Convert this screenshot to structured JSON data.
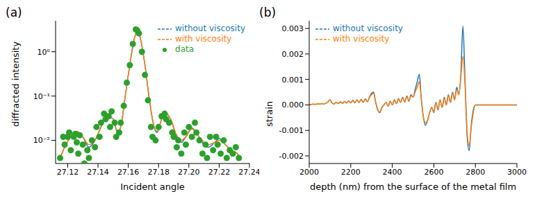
{
  "chart_data": [
    {
      "type": "line",
      "title": "(a)",
      "x_label": "Incident angle",
      "y_label": "diffracted intensity",
      "log": "y",
      "legend": "upper right",
      "xlim": [
        27.112,
        27.24
      ],
      "ylim": [
        0.003,
        5
      ],
      "xticks": [
        27.12,
        27.14,
        27.16,
        27.18,
        {
          "value": 27.2,
          "label": "27.20"
        },
        27.22,
        27.24
      ],
      "yticks": [
        {
          "value": 0.01,
          "label": "10⁻²"
        },
        {
          "value": 0.1,
          "label": "10⁻¹"
        },
        {
          "value": 1,
          "label": "10⁰"
        }
      ],
      "series": [
        {
          "name": "without viscosity",
          "type": "line",
          "color": "#1f77b4",
          "x": [
            27.115,
            27.118,
            27.122,
            27.126,
            27.13,
            27.134,
            27.138,
            27.142,
            27.146,
            27.15,
            27.153,
            27.155,
            27.158,
            27.161,
            27.164,
            27.166,
            27.168,
            27.171,
            27.174,
            27.177,
            27.179,
            27.182,
            27.185,
            27.188,
            27.192,
            27.195,
            27.198,
            27.202,
            27.206,
            27.21,
            27.213,
            27.217,
            27.22,
            27.224,
            27.228,
            27.232,
            27.234
          ],
          "values": [
            0.004,
            0.007,
            0.012,
            0.016,
            0.012,
            0.007,
            0.01,
            0.02,
            0.036,
            0.03,
            0.015,
            0.02,
            0.1,
            0.5,
            2.0,
            3.0,
            2.0,
            0.5,
            0.08,
            0.02,
            0.015,
            0.03,
            0.04,
            0.03,
            0.012,
            0.009,
            0.012,
            0.019,
            0.013,
            0.008,
            0.007,
            0.009,
            0.011,
            0.008,
            0.006,
            0.005,
            0.004
          ]
        },
        {
          "name": "with viscosity",
          "type": "line",
          "color": "#ff7f0e",
          "x": [
            27.115,
            27.118,
            27.122,
            27.126,
            27.13,
            27.134,
            27.138,
            27.142,
            27.146,
            27.15,
            27.153,
            27.155,
            27.158,
            27.161,
            27.164,
            27.166,
            27.168,
            27.171,
            27.174,
            27.177,
            27.179,
            27.182,
            27.185,
            27.188,
            27.192,
            27.195,
            27.198,
            27.202,
            27.206,
            27.21,
            27.213,
            27.217,
            27.22,
            27.224,
            27.228,
            27.232,
            27.234
          ],
          "values": [
            0.004,
            0.007,
            0.012,
            0.016,
            0.012,
            0.008,
            0.01,
            0.02,
            0.035,
            0.03,
            0.016,
            0.02,
            0.1,
            0.5,
            2.0,
            3.0,
            2.0,
            0.5,
            0.08,
            0.021,
            0.016,
            0.03,
            0.039,
            0.03,
            0.013,
            0.01,
            0.012,
            0.018,
            0.013,
            0.009,
            0.008,
            0.009,
            0.01,
            0.008,
            0.006,
            0.005,
            0.004
          ]
        },
        {
          "name": "data",
          "type": "scatter",
          "color": "#2ca02c",
          "marker": "circle",
          "x": [
            27.115,
            27.117,
            27.118,
            27.12,
            27.121,
            27.122,
            27.124,
            27.125,
            27.126,
            27.127,
            27.128,
            27.13,
            27.131,
            27.133,
            27.134,
            27.136,
            27.138,
            27.139,
            27.141,
            27.142,
            27.144,
            27.145,
            27.147,
            27.148,
            27.149,
            27.151,
            27.152,
            27.154,
            27.155,
            27.157,
            27.159,
            27.161,
            27.163,
            27.165,
            27.166,
            27.167,
            27.169,
            27.171,
            27.173,
            27.175,
            27.176,
            27.178,
            27.18,
            27.182,
            27.184,
            27.185,
            27.187,
            27.189,
            27.19,
            27.192,
            27.193,
            27.195,
            27.197,
            27.198,
            27.2,
            27.202,
            27.204,
            27.205,
            27.207,
            27.209,
            27.211,
            27.212,
            27.214,
            27.216,
            27.218,
            27.219,
            27.221,
            27.223,
            27.225,
            27.227,
            27.229,
            27.231,
            27.233
          ],
          "values": [
            0.004,
            0.012,
            0.008,
            0.012,
            0.015,
            0.006,
            0.012,
            0.014,
            0.009,
            0.005,
            0.013,
            0.008,
            0.003,
            0.006,
            0.004,
            0.01,
            0.007,
            0.02,
            0.012,
            0.025,
            0.04,
            0.03,
            0.035,
            0.02,
            0.045,
            0.025,
            0.012,
            0.015,
            0.025,
            0.06,
            0.2,
            0.5,
            1.5,
            3.2,
            3.0,
            2.6,
            1.0,
            0.3,
            0.08,
            0.02,
            0.012,
            0.01,
            0.02,
            0.035,
            0.04,
            0.03,
            0.025,
            0.015,
            0.012,
            0.007,
            0.01,
            0.005,
            0.015,
            0.008,
            0.02,
            0.012,
            0.025,
            0.015,
            0.01,
            0.005,
            0.008,
            0.004,
            0.012,
            0.006,
            0.012,
            0.008,
            0.005,
            0.01,
            0.004,
            0.006,
            0.005,
            0.007,
            0.004
          ]
        }
      ]
    },
    {
      "type": "line",
      "title": "(b)",
      "x_label": "depth (nm) from the surface of the metal film",
      "y_label": "strain",
      "legend": "upper left",
      "xlim": [
        2000,
        3000
      ],
      "ylim": [
        -0.0023,
        0.0033
      ],
      "xticks": [
        2000,
        2200,
        2400,
        2600,
        2800,
        3000
      ],
      "yticks": [
        -0.002,
        -0.001,
        {
          "value": 0,
          "label": "0.000"
        },
        0.001,
        0.002,
        0.003
      ],
      "series": [
        {
          "name": "without viscosity",
          "type": "line",
          "color": "#1f77b4",
          "x": [
            2000,
            2010,
            2020,
            2030,
            2040,
            2050,
            2060,
            2070,
            2080,
            2090,
            2100,
            2110,
            2120,
            2130,
            2140,
            2150,
            2160,
            2170,
            2180,
            2190,
            2200,
            2210,
            2220,
            2230,
            2240,
            2250,
            2260,
            2270,
            2280,
            2290,
            2300,
            2310,
            2320,
            2330,
            2340,
            2350,
            2360,
            2370,
            2380,
            2390,
            2400,
            2410,
            2420,
            2430,
            2440,
            2450,
            2460,
            2470,
            2480,
            2490,
            2500,
            2510,
            2520,
            2530,
            2540,
            2550,
            2560,
            2570,
            2580,
            2590,
            2600,
            2610,
            2620,
            2630,
            2640,
            2650,
            2660,
            2670,
            2680,
            2690,
            2700,
            2710,
            2720,
            2730,
            2740,
            2750,
            2760,
            2770,
            2780,
            2790,
            2800,
            2850,
            2900,
            2950,
            3000
          ],
          "values": [
            0,
            2e-05,
            3e-05,
            2e-05,
            4e-05,
            3e-05,
            5e-05,
            4e-05,
            6e-05,
            0.00012,
            0.0002,
            8e-05,
            4e-05,
            0.0001,
            5e-05,
            0.00012,
            6e-05,
            0.00014,
            7e-05,
            0.00016,
            8e-05,
            0.00018,
            8e-05,
            0.0002,
            9e-05,
            0.00022,
            0.0001,
            0.00024,
            0.00012,
            0.0003,
            0.00045,
            0.0005,
            0.0001,
            -0.0002,
            -0.0003,
            -0.0001,
            0,
            0.0001,
            -5e-05,
            0.00015,
            0,
            0.0002,
            5e-05,
            0.00025,
            0.0001,
            0.0003,
            0.00012,
            0.00035,
            0.00015,
            0.0004,
            0.0003,
            0.0006,
            0.0009,
            0.0012,
            0.0002,
            -0.0005,
            -0.0008,
            -0.0006,
            -0.0003,
            -0.0001,
            -0.0003,
            0.0001,
            -0.0002,
            0.0002,
            -0.0001,
            0.0003,
            0,
            0.0004,
            0.0001,
            0.0005,
            0.0002,
            0.0007,
            0.0004,
            0.0012,
            0.0031,
            0.001,
            -0.0012,
            -0.0018,
            -0.0008,
            -0.0002,
            0,
            0,
            0,
            0,
            0
          ]
        },
        {
          "name": "with viscosity",
          "type": "line",
          "color": "#ff7f0e",
          "x": [
            2000,
            2010,
            2020,
            2030,
            2040,
            2050,
            2060,
            2070,
            2080,
            2090,
            2100,
            2110,
            2120,
            2130,
            2140,
            2150,
            2160,
            2170,
            2180,
            2190,
            2200,
            2210,
            2220,
            2230,
            2240,
            2250,
            2260,
            2270,
            2280,
            2290,
            2300,
            2310,
            2320,
            2330,
            2340,
            2350,
            2360,
            2370,
            2380,
            2390,
            2400,
            2410,
            2420,
            2430,
            2440,
            2450,
            2460,
            2470,
            2480,
            2490,
            2500,
            2510,
            2520,
            2530,
            2540,
            2550,
            2560,
            2570,
            2580,
            2590,
            2600,
            2610,
            2620,
            2630,
            2640,
            2650,
            2660,
            2670,
            2680,
            2690,
            2700,
            2710,
            2720,
            2730,
            2740,
            2750,
            2760,
            2770,
            2780,
            2790,
            2800,
            2850,
            2900,
            2950,
            3000
          ],
          "values": [
            0,
            2e-05,
            3e-05,
            2e-05,
            4e-05,
            3e-05,
            5e-05,
            4e-05,
            6e-05,
            0.00012,
            0.0002,
            8e-05,
            4e-05,
            0.0001,
            5e-05,
            0.00011,
            6e-05,
            0.00013,
            7e-05,
            0.00015,
            8e-05,
            0.00017,
            8e-05,
            0.00019,
            9e-05,
            0.00021,
            0.0001,
            0.00023,
            0.00012,
            0.00028,
            0.0004,
            0.00045,
            0.0001,
            -0.0002,
            -0.00028,
            -0.0001,
            0,
            0.0001,
            -4e-05,
            0.00014,
            0,
            0.00018,
            5e-05,
            0.00023,
            0.0001,
            0.00028,
            0.00012,
            0.00032,
            0.00015,
            0.00036,
            0.0003,
            0.0005,
            0.0007,
            0.0009,
            0.0002,
            -0.0005,
            -0.0007,
            -0.0006,
            -0.0003,
            -0.0001,
            -0.00028,
            0.0001,
            -0.00018,
            0.00018,
            -0.0001,
            0.00027,
            0,
            0.00036,
            0.0001,
            0.00045,
            0.0002,
            0.0006,
            0.0004,
            0.0011,
            0.0019,
            0.0008,
            -0.001,
            -0.0016,
            -0.0009,
            -0.0003,
            0,
            0,
            0,
            0,
            0
          ]
        }
      ]
    }
  ]
}
